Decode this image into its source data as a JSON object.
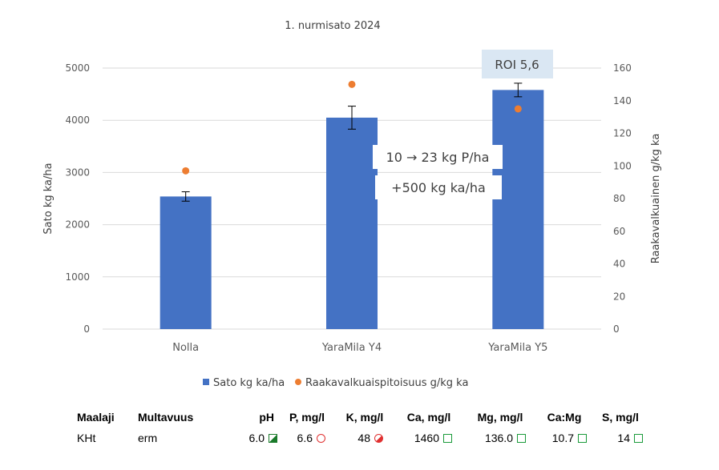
{
  "chart_data": {
    "type": "bar",
    "title": "1. nurmisato 2024",
    "categories": [
      "Nolla",
      "YaraMila Y4",
      "YaraMila Y5"
    ],
    "series": [
      {
        "name": "Sato kg ka/ha",
        "type": "bar",
        "axis": "left",
        "color": "#4472C4",
        "values": [
          2540,
          4050,
          4580
        ],
        "error": [
          90,
          220,
          130
        ]
      },
      {
        "name": "Raakavalkuaispitoisuus g/kg ka",
        "type": "scatter",
        "axis": "right",
        "color": "#ED7D31",
        "values": [
          97,
          150,
          135
        ]
      }
    ],
    "ylabel": "Sato kg ka/ha",
    "y2label": "Raakavalkuainen g/kg ka",
    "ylim": [
      0,
      5000
    ],
    "y2lim": [
      0,
      160
    ],
    "yticks": [
      "0",
      "1000",
      "2000",
      "3000",
      "4000",
      "5000"
    ],
    "y2ticks": [
      "0",
      "20",
      "40",
      "60",
      "80",
      "100",
      "120",
      "140",
      "160"
    ],
    "legend_position": "bottom",
    "gridlines": true,
    "annotations": {
      "roi": "ROI 5,6",
      "phos": "10 → 23 kg P/ha",
      "gain": "+500 kg ka/ha"
    }
  },
  "soil": {
    "headers": {
      "maalaji": "Maalaji",
      "multavuus": "Multavuus",
      "ph": "pH",
      "p": "P, mg/l",
      "k": "K, mg/l",
      "ca": "Ca, mg/l",
      "mg": "Mg, mg/l",
      "camg": "Ca:Mg",
      "s": "S, mg/l"
    },
    "values": {
      "maalaji": "KHt",
      "multavuus": "erm",
      "ph": "6.0",
      "p": "6.6",
      "k": "48",
      "ca": "1460",
      "mg": "136.0",
      "camg": "10.7",
      "s": "14"
    },
    "indicators": {
      "ph": "half-filled-green-square-icon",
      "p": "empty-red-circle-icon",
      "k": "half-filled-red-circle-icon",
      "ca": "empty-green-square-icon",
      "mg": "empty-green-square-icon",
      "camg": "empty-green-square-icon",
      "s": "empty-green-square-icon"
    }
  }
}
